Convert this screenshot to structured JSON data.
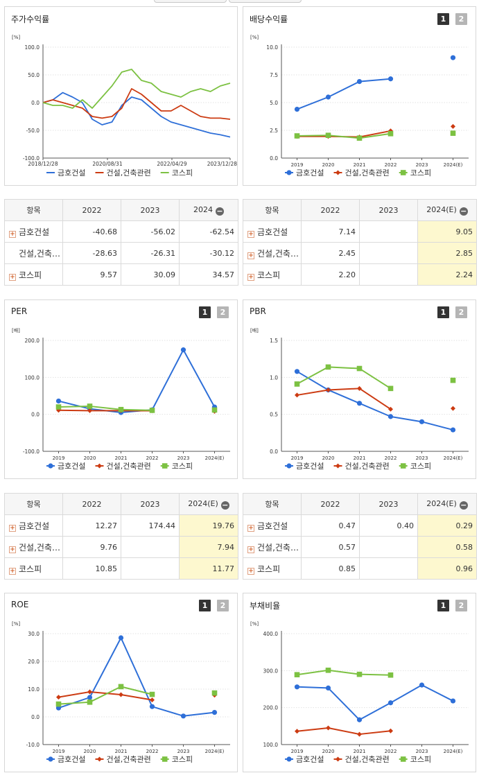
{
  "legend_series": [
    "금호건설",
    "건설,건축관련",
    "코스피"
  ],
  "colors": {
    "s1": "#2e6fd8",
    "s2": "#cc3b12",
    "s3": "#7cc142"
  },
  "buttons": {
    "b1": "1",
    "b2": "2"
  },
  "panels": {
    "stock_return": {
      "title": "주가수익률",
      "unit": "[%]",
      "y_ticks": [
        "100.0",
        "50.0",
        "0.0",
        "-50.0",
        "-100.0"
      ],
      "x_ticks": [
        "2018/12/28",
        "2020/08/31",
        "2022/04/29",
        "2023/12/28"
      ],
      "table": {
        "header": [
          "항목",
          "2022",
          "2023",
          "2024"
        ],
        "rows": [
          {
            "name": "금호건설",
            "v": [
              "-40.68",
              "-56.02",
              "-62.54"
            ]
          },
          {
            "name": "건설,건축…",
            "v": [
              "-28.63",
              "-26.31",
              "-30.12"
            ]
          },
          {
            "name": "코스피",
            "v": [
              "9.57",
              "30.09",
              "34.57"
            ]
          }
        ]
      }
    },
    "dividend": {
      "title": "배당수익률",
      "unit": "[%]",
      "y_ticks": [
        "10.0",
        "7.5",
        "5.0",
        "2.5",
        "0.0"
      ],
      "x_ticks": [
        "2019",
        "2020",
        "2021",
        "2022",
        "2023",
        "2024(E)"
      ],
      "table": {
        "header": [
          "항목",
          "2022",
          "2023",
          "2024(E)"
        ],
        "rows": [
          {
            "name": "금호건설",
            "v": [
              "7.14",
              "",
              "9.05"
            ]
          },
          {
            "name": "건설,건축…",
            "v": [
              "2.45",
              "",
              "2.85"
            ]
          },
          {
            "name": "코스피",
            "v": [
              "2.20",
              "",
              "2.24"
            ]
          }
        ]
      }
    },
    "per": {
      "title": "PER",
      "unit": "[배]",
      "y_ticks": [
        "200.0",
        "100.0",
        "0.0",
        "-100.0"
      ],
      "x_ticks": [
        "2019",
        "2020",
        "2021",
        "2022",
        "2023",
        "2024(E)"
      ],
      "table": {
        "header": [
          "항목",
          "2022",
          "2023",
          "2024(E)"
        ],
        "rows": [
          {
            "name": "금호건설",
            "v": [
              "12.27",
              "174.44",
              "19.76"
            ]
          },
          {
            "name": "건설,건축…",
            "v": [
              "9.76",
              "",
              "7.94"
            ]
          },
          {
            "name": "코스피",
            "v": [
              "10.85",
              "",
              "11.77"
            ]
          }
        ]
      }
    },
    "pbr": {
      "title": "PBR",
      "unit": "[배]",
      "y_ticks": [
        "1.5",
        "1.0",
        "0.5",
        "0.0"
      ],
      "x_ticks": [
        "2019",
        "2020",
        "2021",
        "2022",
        "2023",
        "2024(E)"
      ],
      "table": {
        "header": [
          "항목",
          "2022",
          "2023",
          "2024(E)"
        ],
        "rows": [
          {
            "name": "금호건설",
            "v": [
              "0.47",
              "0.40",
              "0.29"
            ]
          },
          {
            "name": "건설,건축…",
            "v": [
              "0.57",
              "",
              "0.58"
            ]
          },
          {
            "name": "코스피",
            "v": [
              "0.85",
              "",
              "0.96"
            ]
          }
        ]
      }
    },
    "roe": {
      "title": "ROE",
      "unit": "[%]",
      "y_ticks": [
        "30.0",
        "20.0",
        "10.0",
        "0.0",
        "-10.0"
      ],
      "x_ticks": [
        "2019",
        "2020",
        "2021",
        "2022",
        "2023",
        "2024(E)"
      ]
    },
    "debt": {
      "title": "부채비율",
      "unit": "[%]",
      "y_ticks": [
        "400.0",
        "300.0",
        "200.0",
        "100.0"
      ],
      "x_ticks": [
        "2019",
        "2020",
        "2021",
        "2022",
        "2023",
        "2024(E)"
      ]
    }
  },
  "chart_data": [
    {
      "id": "stock_return",
      "type": "line",
      "x": [
        "2018/12/28",
        "2019/03",
        "2019/06",
        "2019/09",
        "2019/12",
        "2020/03",
        "2020/06",
        "2020/08/31",
        "2020/12",
        "2021/03",
        "2021/06",
        "2021/09",
        "2021/12",
        "2022/04/29",
        "2022/08",
        "2022/12",
        "2023/04",
        "2023/08",
        "2023/12/28",
        "2024"
      ],
      "ylim": [
        -100,
        100
      ],
      "series": [
        {
          "name": "금호건설",
          "values": [
            0,
            5,
            18,
            10,
            0,
            -30,
            -40,
            -35,
            -5,
            10,
            5,
            -10,
            -25,
            -35,
            -40,
            -45,
            -50,
            -55,
            -58,
            -62
          ]
        },
        {
          "name": "건설,건축관련",
          "values": [
            0,
            5,
            0,
            -5,
            -10,
            -25,
            -28,
            -25,
            -10,
            25,
            15,
            0,
            -15,
            -15,
            -5,
            -15,
            -25,
            -28,
            -28,
            -30
          ]
        },
        {
          "name": "코스피",
          "values": [
            0,
            -5,
            -5,
            -10,
            5,
            -10,
            10,
            30,
            55,
            60,
            40,
            35,
            20,
            15,
            10,
            20,
            25,
            20,
            30,
            35
          ]
        }
      ]
    },
    {
      "id": "dividend",
      "type": "line",
      "x": [
        "2019",
        "2020",
        "2021",
        "2022",
        "2023",
        "2024(E)"
      ],
      "ylim": [
        0,
        10
      ],
      "series": [
        {
          "name": "금호건설",
          "values": [
            4.4,
            5.5,
            6.9,
            7.14,
            null,
            9.05
          ]
        },
        {
          "name": "건설,건축관련",
          "values": [
            1.95,
            1.95,
            1.9,
            2.45,
            null,
            2.85
          ]
        },
        {
          "name": "코스피",
          "values": [
            2.0,
            2.05,
            1.8,
            2.2,
            null,
            2.24
          ]
        }
      ]
    },
    {
      "id": "per",
      "type": "line",
      "x": [
        "2019",
        "2020",
        "2021",
        "2022",
        "2023",
        "2024(E)"
      ],
      "ylim": [
        -100,
        200
      ],
      "series": [
        {
          "name": "금호건설",
          "values": [
            36,
            15,
            5,
            12.27,
            174.44,
            19.76
          ]
        },
        {
          "name": "건설,건축관련",
          "values": [
            11,
            10,
            10,
            9.76,
            null,
            7.94
          ]
        },
        {
          "name": "코스피",
          "values": [
            20,
            22,
            13,
            10.85,
            null,
            11.77
          ]
        }
      ]
    },
    {
      "id": "pbr",
      "type": "line",
      "x": [
        "2019",
        "2020",
        "2021",
        "2022",
        "2023",
        "2024(E)"
      ],
      "ylim": [
        0,
        1.5
      ],
      "series": [
        {
          "name": "금호건설",
          "values": [
            1.08,
            0.83,
            0.65,
            0.47,
            0.4,
            0.29
          ]
        },
        {
          "name": "건설,건축관련",
          "values": [
            0.76,
            0.83,
            0.85,
            0.57,
            null,
            0.58
          ]
        },
        {
          "name": "코스피",
          "values": [
            0.91,
            1.14,
            1.12,
            0.85,
            null,
            0.96
          ]
        }
      ]
    },
    {
      "id": "roe",
      "type": "line",
      "x": [
        "2019",
        "2020",
        "2021",
        "2022",
        "2023",
        "2024(E)"
      ],
      "ylim": [
        -10,
        30
      ],
      "series": [
        {
          "name": "금호건설",
          "values": [
            3.2,
            7.0,
            28.5,
            3.7,
            0.3,
            1.6
          ]
        },
        {
          "name": "건설,건축관련",
          "values": [
            7.1,
            9.0,
            8.0,
            6.1,
            null,
            7.8
          ]
        },
        {
          "name": "코스피",
          "values": [
            4.6,
            5.3,
            10.9,
            8.1,
            null,
            8.6
          ]
        }
      ]
    },
    {
      "id": "debt",
      "type": "line",
      "x": [
        "2019",
        "2020",
        "2021",
        "2022",
        "2023",
        "2024(E)"
      ],
      "ylim": [
        100,
        400
      ],
      "series": [
        {
          "name": "금호건설",
          "values": [
            256,
            253,
            167,
            213,
            261,
            218
          ]
        },
        {
          "name": "건설,건축관련",
          "values": [
            136,
            145,
            128,
            137,
            null,
            null
          ]
        },
        {
          "name": "코스피",
          "values": [
            289,
            301,
            290,
            288,
            null,
            null
          ]
        }
      ]
    }
  ]
}
